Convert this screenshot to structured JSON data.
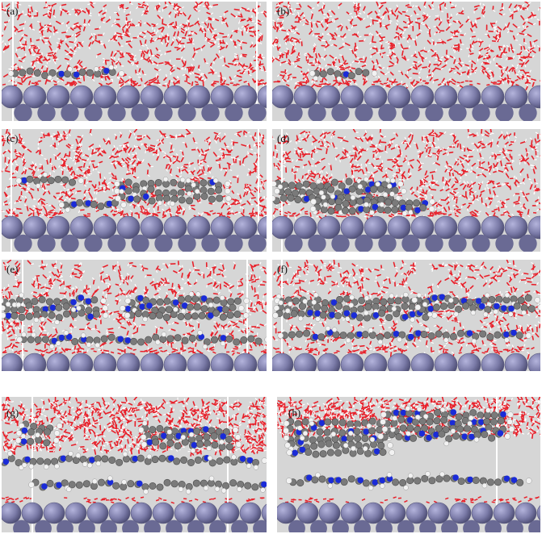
{
  "figure": {
    "panels": [
      {
        "label": "(a)"
      },
      {
        "label": "(b)"
      },
      {
        "label": "(c)"
      },
      {
        "label": "(d)"
      },
      {
        "label": "(e)"
      },
      {
        "label": "(f)"
      },
      {
        "label": "(g)"
      },
      {
        "label": "(h)"
      }
    ],
    "colors": {
      "background": "#d6d6d6",
      "water_oxygen": "#e8202a",
      "water_hydrogen": "#ffffff",
      "carbon": "#7a7a7a",
      "nitrogen": "#1a2bd8",
      "hydrogen": "#f2f2f2",
      "substrate_atom": "#7b7ba8",
      "box_line": "#ffffff"
    }
  }
}
